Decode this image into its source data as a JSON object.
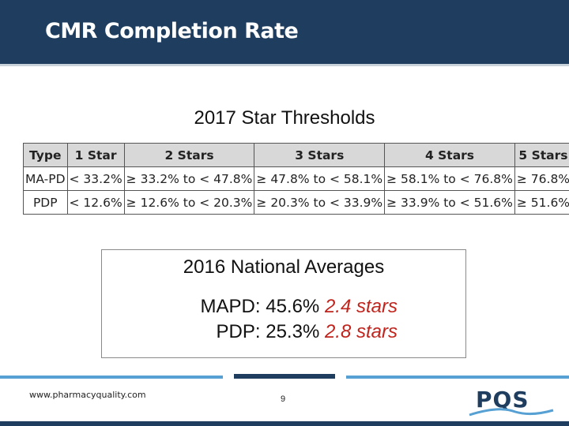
{
  "header": {
    "title": "CMR Completion Rate"
  },
  "thresholds": {
    "title": "2017 Star Thresholds",
    "columns": [
      "Type",
      "1 Star",
      "2 Stars",
      "3 Stars",
      "4 Stars",
      "5 Stars"
    ],
    "rows": [
      [
        "MA-PD",
        "< 33.2%",
        "≥ 33.2% to < 47.8%",
        "≥ 47.8% to < 58.1%",
        "≥ 58.1% to < 76.8%",
        "≥ 76.8%"
      ],
      [
        "PDP",
        "< 12.6%",
        "≥ 12.6% to < 20.3%",
        "≥ 20.3% to < 33.9%",
        "≥ 33.9% to < 51.6%",
        "≥ 51.6%"
      ]
    ]
  },
  "averages": {
    "title": "2016 National Averages",
    "mapd_label": "MAPD: 45.6%",
    "mapd_stars": "2.4 stars",
    "pdp_label": "PDP: 25.3%",
    "pdp_stars": "2.8 stars"
  },
  "footer": {
    "url": "www.pharmacyquality.com",
    "page_number": "9",
    "logo_text": "PQS"
  },
  "colors": {
    "header_bg": "#1f3e5f",
    "accent_blue": "#56a0d3",
    "stars_red": "#c0241c"
  }
}
